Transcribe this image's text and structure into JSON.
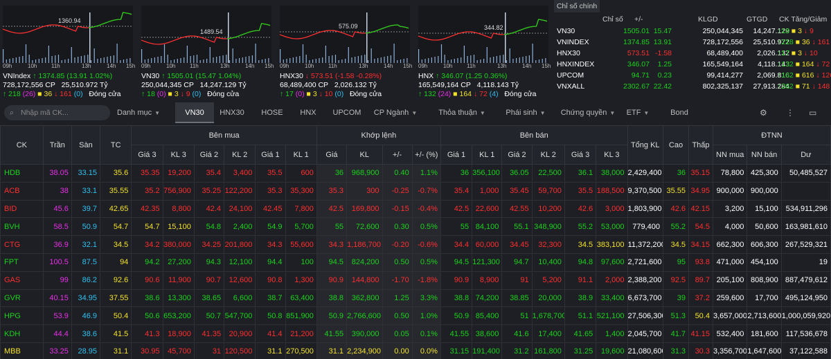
{
  "indices": [
    {
      "name": "VNIndex",
      "value": "1374.85",
      "change": "(13.91 1.02%)",
      "volume": "728,172,556 CP",
      "gtgd": "25,510.972 Tỷ",
      "up": "218",
      "ceil": "(26)",
      "ref": "36",
      "down": "161",
      "floor": "(0)",
      "status": "Đóng cửa",
      "refline": "1360.94",
      "color": "g",
      "arrow": "↑"
    },
    {
      "name": "VN30",
      "value": "1505.01",
      "change": "(15.47 1.04%)",
      "volume": "250,044,345 CP",
      "gtgd": "14,247.129 Tỷ",
      "up": "18",
      "ceil": "(0)",
      "ref": "3",
      "down": "9",
      "floor": "(0)",
      "status": "Đóng cửa",
      "refline": "1489.54",
      "color": "g",
      "arrow": "↑"
    },
    {
      "name": "HNX30",
      "value": "573.51",
      "change": "(-1.58 -0.28%)",
      "volume": "68,489,400 CP",
      "gtgd": "2,026.132 Tỷ",
      "up": "17",
      "ceil": "(0)",
      "ref": "3",
      "down": "10",
      "floor": "(0)",
      "status": "Đóng cửa",
      "refline": "575.09",
      "color": "r",
      "arrow": "↓"
    },
    {
      "name": "HNX",
      "value": "346.07",
      "change": "(1.25 0.36%)",
      "volume": "165,549,164 CP",
      "gtgd": "4,118.143 Tỷ",
      "up": "132",
      "ceil": "(24)",
      "ref": "164",
      "down": "72",
      "floor": "(4)",
      "status": "Đóng cửa",
      "refline": "344.82",
      "color": "g",
      "arrow": "↑"
    }
  ],
  "time_labels": [
    "09h",
    "10h",
    "11h",
    "13h",
    "14h",
    "15h"
  ],
  "summary": {
    "title": "Chỉ số chính",
    "headers": [
      "Chỉ số",
      "+/-",
      "KLGD",
      "GTGD",
      "CK Tăng/Giảm"
    ],
    "rows": [
      {
        "name": "VN30",
        "value": "1505.01",
        "chg": "15.47",
        "vol": "250,044,345",
        "val": "14,247.129",
        "up": "18",
        "ref": "3",
        "down": "9",
        "c": "g"
      },
      {
        "name": "VNINDEX",
        "value": "1374.85",
        "chg": "13.91",
        "vol": "728,172,556",
        "val": "25,510.972",
        "up": "218",
        "ref": "36",
        "down": "161",
        "c": "g"
      },
      {
        "name": "HNX30",
        "value": "573.51",
        "chg": "-1.58",
        "vol": "68,489,400",
        "val": "2,026.132",
        "up": "17",
        "ref": "3",
        "down": "10",
        "c": "r"
      },
      {
        "name": "HNXINDEX",
        "value": "346.07",
        "chg": "1.25",
        "vol": "165,549,164",
        "val": "4,118.143",
        "up": "132",
        "ref": "164",
        "down": "72",
        "c": "g"
      },
      {
        "name": "UPCOM",
        "value": "94.71",
        "chg": "0.23",
        "vol": "99,414,277",
        "val": "2,069.816",
        "up": "162",
        "ref": "616",
        "down": "126",
        "c": "g"
      },
      {
        "name": "VNXALL",
        "value": "2302.67",
        "chg": "22.42",
        "vol": "802,325,137",
        "val": "27,913.284",
        "up": "262",
        "ref": "71",
        "down": "148",
        "c": "g"
      }
    ]
  },
  "search_placeholder": "Nhập mã CK...",
  "tabs": [
    "Danh mục",
    "VN30",
    "HNX30",
    "HOSE",
    "HNX",
    "UPCOM",
    "CP Ngành",
    "Thỏa thuận",
    "Phái sinh",
    "Chứng quyền",
    "ETF",
    "Bond"
  ],
  "headers": {
    "ck": "CK",
    "tran": "Trần",
    "san": "Sàn",
    "tc": "TC",
    "buy": "Bên mua",
    "match": "Khớp lệnh",
    "sell": "Bên bán",
    "tongkl": "Tổng KL",
    "cao": "Cao",
    "thap": "Thấp",
    "dtnn": "ĐTNN",
    "sub": [
      "Giá 3",
      "KL 3",
      "Giá 2",
      "KL 2",
      "Giá 1",
      "KL 1",
      "Giá",
      "KL",
      "+/-",
      "+/- (%)",
      "Giá 1",
      "KL 1",
      "Giá 2",
      "KL 2",
      "Giá 3",
      "KL 3",
      "NN mua",
      "NN bán",
      "Dư"
    ]
  },
  "rows": [
    {
      "ck": "HDB",
      "c": "g",
      "tran": "38.05",
      "san": "33.15",
      "tc": "35.6",
      "cells": [
        [
          "35.35",
          "r"
        ],
        [
          "19,200",
          "r"
        ],
        [
          "35.4",
          "r"
        ],
        [
          "3,400",
          "r"
        ],
        [
          "35.5",
          "r"
        ],
        [
          "600",
          "r"
        ],
        [
          "36",
          "g"
        ],
        [
          "968,900",
          "g"
        ],
        [
          "0.40",
          "g"
        ],
        [
          "1.1%",
          "g"
        ],
        [
          "36",
          "g"
        ],
        [
          "356,100",
          "g"
        ],
        [
          "36.05",
          "g"
        ],
        [
          "22,500",
          "g"
        ],
        [
          "36.1",
          "g"
        ],
        [
          "38,000",
          "g"
        ]
      ],
      "tongkl": "2,429,400",
      "cao": [
        "36",
        "g"
      ],
      "thap": [
        "35.15",
        "r"
      ],
      "nnmua": "78,800",
      "nnban": "425,300",
      "du": "50,485,527"
    },
    {
      "ck": "ACB",
      "c": "r",
      "tran": "38",
      "san": "33.1",
      "tc": "35.55",
      "cells": [
        [
          "35.2",
          "r"
        ],
        [
          "756,900",
          "r"
        ],
        [
          "35.25",
          "r"
        ],
        [
          "122,200",
          "r"
        ],
        [
          "35.3",
          "r"
        ],
        [
          "35,300",
          "r"
        ],
        [
          "35.3",
          "r"
        ],
        [
          "300",
          "r"
        ],
        [
          "-0.25",
          "r"
        ],
        [
          "-0.7%",
          "r"
        ],
        [
          "35.4",
          "r"
        ],
        [
          "1,000",
          "r"
        ],
        [
          "35.45",
          "r"
        ],
        [
          "59,700",
          "r"
        ],
        [
          "35.5",
          "r"
        ],
        [
          "188,500",
          "r"
        ]
      ],
      "tongkl": "9,370,500",
      "cao": [
        "35.55",
        "y"
      ],
      "thap": [
        "34.95",
        "r"
      ],
      "nnmua": "900,000",
      "nnban": "900,000",
      "du": ""
    },
    {
      "ck": "BID",
      "c": "r",
      "tran": "45.6",
      "san": "39.7",
      "tc": "42.65",
      "cells": [
        [
          "42.35",
          "r"
        ],
        [
          "8,800",
          "r"
        ],
        [
          "42.4",
          "r"
        ],
        [
          "24,100",
          "r"
        ],
        [
          "42.45",
          "r"
        ],
        [
          "7,800",
          "r"
        ],
        [
          "42.5",
          "r"
        ],
        [
          "169,800",
          "r"
        ],
        [
          "-0.15",
          "r"
        ],
        [
          "-0.4%",
          "r"
        ],
        [
          "42.5",
          "r"
        ],
        [
          "22,600",
          "r"
        ],
        [
          "42.55",
          "r"
        ],
        [
          "10,200",
          "r"
        ],
        [
          "42.6",
          "r"
        ],
        [
          "3,000",
          "r"
        ]
      ],
      "tongkl": "1,803,900",
      "cao": [
        "42.6",
        "r"
      ],
      "thap": [
        "42.15",
        "r"
      ],
      "nnmua": "3,200",
      "nnban": "15,100",
      "du": "534,911,296"
    },
    {
      "ck": "BVH",
      "c": "g",
      "tran": "58.5",
      "san": "50.9",
      "tc": "54.7",
      "cells": [
        [
          "54.7",
          "y"
        ],
        [
          "15,100",
          "y"
        ],
        [
          "54.8",
          "g"
        ],
        [
          "2,400",
          "g"
        ],
        [
          "54.9",
          "g"
        ],
        [
          "5,700",
          "g"
        ],
        [
          "55",
          "g"
        ],
        [
          "72,600",
          "g"
        ],
        [
          "0.30",
          "g"
        ],
        [
          "0.5%",
          "g"
        ],
        [
          "55",
          "g"
        ],
        [
          "84,100",
          "g"
        ],
        [
          "55.1",
          "g"
        ],
        [
          "348,900",
          "g"
        ],
        [
          "55.2",
          "g"
        ],
        [
          "53,000",
          "g"
        ]
      ],
      "tongkl": "779,400",
      "cao": [
        "55.2",
        "g"
      ],
      "thap": [
        "54.5",
        "r"
      ],
      "nnmua": "4,000",
      "nnban": "50,600",
      "du": "163,981,610"
    },
    {
      "ck": "CTG",
      "c": "r",
      "tran": "36.9",
      "san": "32.1",
      "tc": "34.5",
      "cells": [
        [
          "34.2",
          "r"
        ],
        [
          "380,000",
          "r"
        ],
        [
          "34.25",
          "r"
        ],
        [
          "201,800",
          "r"
        ],
        [
          "34.3",
          "r"
        ],
        [
          "55,600",
          "r"
        ],
        [
          "34.3",
          "r"
        ],
        [
          "1,186,700",
          "r"
        ],
        [
          "-0.20",
          "r"
        ],
        [
          "-0.6%",
          "r"
        ],
        [
          "34.4",
          "r"
        ],
        [
          "60,000",
          "r"
        ],
        [
          "34.45",
          "r"
        ],
        [
          "32,300",
          "r"
        ],
        [
          "34.5",
          "y"
        ],
        [
          "383,100",
          "y"
        ]
      ],
      "tongkl": "11,372,200",
      "cao": [
        "34.5",
        "y"
      ],
      "thap": [
        "34.15",
        "r"
      ],
      "nnmua": "662,300",
      "nnban": "606,300",
      "du": "267,529,321"
    },
    {
      "ck": "FPT",
      "c": "g",
      "tran": "100.5",
      "san": "87.5",
      "tc": "94",
      "cells": [
        [
          "94.2",
          "g"
        ],
        [
          "27,200",
          "g"
        ],
        [
          "94.3",
          "g"
        ],
        [
          "12,100",
          "g"
        ],
        [
          "94.4",
          "g"
        ],
        [
          "100",
          "g"
        ],
        [
          "94.5",
          "g"
        ],
        [
          "824,200",
          "g"
        ],
        [
          "0.50",
          "g"
        ],
        [
          "0.5%",
          "g"
        ],
        [
          "94.5",
          "g"
        ],
        [
          "121,300",
          "g"
        ],
        [
          "94.7",
          "g"
        ],
        [
          "10,400",
          "g"
        ],
        [
          "94.8",
          "g"
        ],
        [
          "97,600",
          "g"
        ]
      ],
      "tongkl": "2,721,600",
      "cao": [
        "95",
        "g"
      ],
      "thap": [
        "93.8",
        "r"
      ],
      "nnmua": "471,000",
      "nnban": "454,100",
      "du": "19"
    },
    {
      "ck": "GAS",
      "c": "r",
      "tran": "99",
      "san": "86.2",
      "tc": "92.6",
      "cells": [
        [
          "90.6",
          "r"
        ],
        [
          "11,900",
          "r"
        ],
        [
          "90.7",
          "r"
        ],
        [
          "12,600",
          "r"
        ],
        [
          "90.8",
          "r"
        ],
        [
          "1,300",
          "r"
        ],
        [
          "90.9",
          "r"
        ],
        [
          "144,800",
          "r"
        ],
        [
          "-1.70",
          "r"
        ],
        [
          "-1.8%",
          "r"
        ],
        [
          "90.9",
          "r"
        ],
        [
          "8,900",
          "r"
        ],
        [
          "91",
          "r"
        ],
        [
          "5,200",
          "r"
        ],
        [
          "91.1",
          "r"
        ],
        [
          "2,000",
          "r"
        ]
      ],
      "tongkl": "2,388,200",
      "cao": [
        "92.5",
        "r"
      ],
      "thap": [
        "89.7",
        "r"
      ],
      "nnmua": "205,100",
      "nnban": "808,900",
      "du": "887,479,612"
    },
    {
      "ck": "GVR",
      "c": "g",
      "tran": "40.15",
      "san": "34.95",
      "tc": "37.55",
      "cells": [
        [
          "38.6",
          "g"
        ],
        [
          "13,300",
          "g"
        ],
        [
          "38.65",
          "g"
        ],
        [
          "6,600",
          "g"
        ],
        [
          "38.7",
          "g"
        ],
        [
          "63,400",
          "g"
        ],
        [
          "38.8",
          "g"
        ],
        [
          "362,800",
          "g"
        ],
        [
          "1.25",
          "g"
        ],
        [
          "3.3%",
          "g"
        ],
        [
          "38.8",
          "g"
        ],
        [
          "74,200",
          "g"
        ],
        [
          "38.85",
          "g"
        ],
        [
          "20,000",
          "g"
        ],
        [
          "38.9",
          "g"
        ],
        [
          "33,400",
          "g"
        ]
      ],
      "tongkl": "6,673,700",
      "cao": [
        "39",
        "g"
      ],
      "thap": [
        "37.2",
        "r"
      ],
      "nnmua": "259,600",
      "nnban": "17,700",
      "du": "495,124,950"
    },
    {
      "ck": "HPG",
      "c": "g",
      "tran": "53.9",
      "san": "46.9",
      "tc": "50.4",
      "cells": [
        [
          "50.6",
          "g"
        ],
        [
          "653,200",
          "g"
        ],
        [
          "50.7",
          "g"
        ],
        [
          "547,700",
          "g"
        ],
        [
          "50.8",
          "g"
        ],
        [
          "851,900",
          "g"
        ],
        [
          "50.9",
          "g"
        ],
        [
          "2,766,600",
          "g"
        ],
        [
          "0.50",
          "g"
        ],
        [
          "1.0%",
          "g"
        ],
        [
          "50.9",
          "g"
        ],
        [
          "85,400",
          "g"
        ],
        [
          "51",
          "g"
        ],
        [
          "1,678,700",
          "g"
        ],
        [
          "51.1",
          "g"
        ],
        [
          "521,100",
          "g"
        ]
      ],
      "tongkl": "27,506,300",
      "cao": [
        "51.3",
        "g"
      ],
      "thap": [
        "50.4",
        "y"
      ],
      "nnmua": "3,657,000",
      "nnban": "2,713,600",
      "du": "1,000,059,920"
    },
    {
      "ck": "KDH",
      "c": "g",
      "tran": "44.4",
      "san": "38.6",
      "tc": "41.5",
      "cells": [
        [
          "41.3",
          "r"
        ],
        [
          "18,900",
          "r"
        ],
        [
          "41.35",
          "r"
        ],
        [
          "20,900",
          "r"
        ],
        [
          "41.4",
          "r"
        ],
        [
          "21,200",
          "r"
        ],
        [
          "41.55",
          "g"
        ],
        [
          "390,000",
          "g"
        ],
        [
          "0.05",
          "g"
        ],
        [
          "0.1%",
          "g"
        ],
        [
          "41.55",
          "g"
        ],
        [
          "38,600",
          "g"
        ],
        [
          "41.6",
          "g"
        ],
        [
          "17,400",
          "g"
        ],
        [
          "41.65",
          "g"
        ],
        [
          "1,400",
          "g"
        ]
      ],
      "tongkl": "2,045,700",
      "cao": [
        "41.7",
        "g"
      ],
      "thap": [
        "41.15",
        "r"
      ],
      "nnmua": "532,400",
      "nnban": "181,600",
      "du": "117,536,678"
    },
    {
      "ck": "MBB",
      "c": "y",
      "tran": "33.25",
      "san": "28.95",
      "tc": "31.1",
      "cells": [
        [
          "30.95",
          "r"
        ],
        [
          "45,700",
          "r"
        ],
        [
          "31",
          "r"
        ],
        [
          "120,500",
          "r"
        ],
        [
          "31.1",
          "y"
        ],
        [
          "270,500",
          "y"
        ],
        [
          "31.1",
          "y"
        ],
        [
          "2,234,900",
          "y"
        ],
        [
          "0.00",
          "y"
        ],
        [
          "0.0%",
          "y"
        ],
        [
          "31.15",
          "g"
        ],
        [
          "191,400",
          "g"
        ],
        [
          "31.2",
          "g"
        ],
        [
          "161,800",
          "g"
        ],
        [
          "31.25",
          "g"
        ],
        [
          "19,600",
          "g"
        ]
      ],
      "tongkl": "21,080,600",
      "cao": [
        "31.3",
        "g"
      ],
      "thap": [
        "30.3",
        "r"
      ],
      "nnmua": "3,356,700",
      "nnban": "1,647,600",
      "du": "37,122,588"
    }
  ]
}
